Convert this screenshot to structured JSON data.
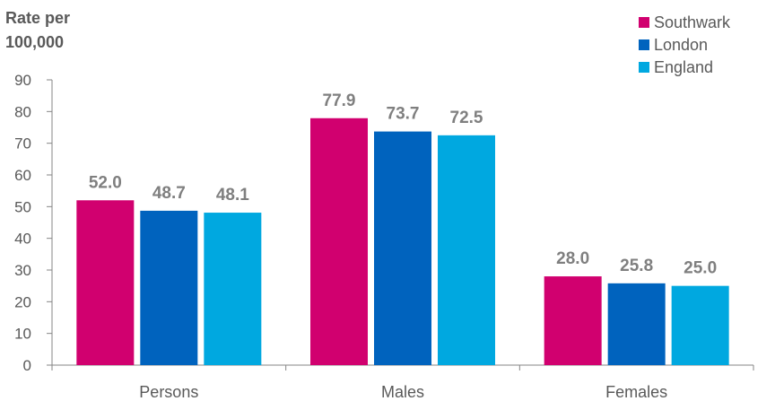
{
  "chart_data": {
    "type": "bar",
    "title": "",
    "ylabel": [
      "Rate per",
      "100,000"
    ],
    "xlabel": "",
    "categories": [
      "Persons",
      "Males",
      "Females"
    ],
    "series": [
      {
        "name": "Southwark",
        "color": "#d1006f",
        "values": [
          52.0,
          77.9,
          28.0
        ]
      },
      {
        "name": "London",
        "color": "#0063be",
        "values": [
          48.7,
          73.7,
          25.8
        ]
      },
      {
        "name": "England",
        "color": "#00a8e0",
        "values": [
          48.1,
          72.5,
          25.0
        ]
      }
    ],
    "data_labels": [
      [
        "52.0",
        "48.7",
        "48.1"
      ],
      [
        "77.9",
        "73.7",
        "72.5"
      ],
      [
        "28.0",
        "25.8",
        "25.0"
      ]
    ],
    "ylim": [
      0,
      90
    ],
    "yticks": [
      "0",
      "10",
      "20",
      "30",
      "40",
      "50",
      "60",
      "70",
      "80",
      "90"
    ],
    "grid": false,
    "legend_position": "top-right"
  }
}
